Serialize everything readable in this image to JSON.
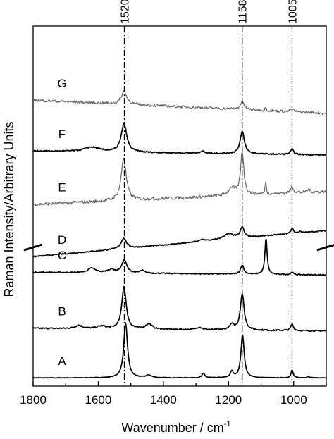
{
  "chart_data": {
    "type": "line",
    "xlabel_main": "Wavenumber / cm",
    "xlabel_exp": "-1",
    "ylabel": "Raman Intensity/Arbitrary Units",
    "xlim": [
      1800,
      900
    ],
    "x_ticks": [
      1800,
      1600,
      1400,
      1200,
      1000
    ],
    "axis_break": true,
    "reference_lines": [
      1520,
      1158,
      1005
    ],
    "peaks_shown": [
      1520,
      1158,
      1005
    ],
    "series": [
      {
        "name": "A",
        "offset": 0.02,
        "baseline": [
          0.0,
          0.0
        ],
        "noise": 0.002,
        "light": false,
        "peaks": [
          [
            1516,
            0.42,
            7
          ],
          [
            1445,
            0.02,
            10
          ],
          [
            1277,
            0.035,
            5
          ],
          [
            1190,
            0.05,
            5
          ],
          [
            1157,
            0.33,
            6
          ],
          [
            1005,
            0.06,
            4
          ],
          [
            955,
            0.01,
            6
          ]
        ]
      },
      {
        "name": "B",
        "offset": 0.38,
        "baseline": [
          0.02,
          0.0
        ],
        "noise": 0.005,
        "light": false,
        "peaks": [
          [
            1660,
            0.025,
            14
          ],
          [
            1590,
            0.02,
            16
          ],
          [
            1521,
            0.33,
            8
          ],
          [
            1445,
            0.04,
            12
          ],
          [
            1290,
            0.02,
            10
          ],
          [
            1190,
            0.04,
            8
          ],
          [
            1158,
            0.28,
            7
          ],
          [
            1005,
            0.05,
            5
          ]
        ]
      },
      {
        "name": "C",
        "offset": 0.81,
        "baseline": [
          0.02,
          0.0
        ],
        "noise": 0.004,
        "light": false,
        "peaks": [
          [
            1620,
            0.035,
            14
          ],
          [
            1560,
            0.025,
            14
          ],
          [
            1520,
            0.1,
            9
          ],
          [
            1465,
            0.02,
            8
          ],
          [
            1158,
            0.07,
            6
          ],
          [
            1085,
            0.28,
            4
          ],
          [
            1005,
            0.02,
            4
          ]
        ]
      },
      {
        "name": "D",
        "offset": 0.95,
        "baseline": [
          0.0,
          0.2
        ],
        "noise": 0.004,
        "light": false,
        "peaks": [
          [
            1522,
            0.08,
            10
          ],
          [
            1280,
            0.015,
            10
          ],
          [
            1200,
            0.04,
            20
          ],
          [
            1158,
            0.08,
            7
          ],
          [
            1005,
            0.04,
            5
          ],
          [
            980,
            0.015,
            3
          ]
        ]
      },
      {
        "name": "E",
        "offset": 1.35,
        "baseline": [
          0.0,
          0.1
        ],
        "noise": 0.012,
        "light": true,
        "peaks": [
          [
            1522,
            0.33,
            9
          ],
          [
            1190,
            0.06,
            12
          ],
          [
            1158,
            0.33,
            6
          ],
          [
            1086,
            0.1,
            2
          ],
          [
            1005,
            0.05,
            5
          ],
          [
            955,
            0.02,
            6
          ]
        ]
      },
      {
        "name": "F",
        "offset": 1.73,
        "baseline": [
          0.03,
          0.0
        ],
        "noise": 0.005,
        "light": false,
        "peaks": [
          [
            1620,
            0.035,
            30
          ],
          [
            1521,
            0.22,
            10
          ],
          [
            1280,
            0.015,
            10
          ],
          [
            1158,
            0.17,
            8
          ],
          [
            1005,
            0.04,
            6
          ]
        ]
      },
      {
        "name": "G",
        "offset": 2.05,
        "baseline": [
          0.1,
          0.0
        ],
        "noise": 0.01,
        "light": true,
        "peaks": [
          [
            1521,
            0.1,
            10
          ],
          [
            1158,
            0.06,
            7
          ],
          [
            1086,
            0.03,
            2
          ],
          [
            1005,
            0.02,
            6
          ]
        ]
      }
    ]
  }
}
